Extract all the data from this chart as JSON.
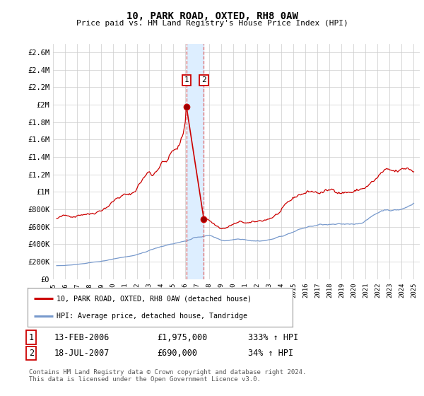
{
  "title": "10, PARK ROAD, OXTED, RH8 0AW",
  "subtitle": "Price paid vs. HM Land Registry's House Price Index (HPI)",
  "ylim": [
    0,
    2700000
  ],
  "yticks": [
    0,
    200000,
    400000,
    600000,
    800000,
    1000000,
    1200000,
    1400000,
    1600000,
    1800000,
    2000000,
    2200000,
    2400000,
    2600000
  ],
  "ytick_labels": [
    "£0",
    "£200K",
    "£400K",
    "£600K",
    "£800K",
    "£1M",
    "£1.2M",
    "£1.4M",
    "£1.6M",
    "£1.8M",
    "£2M",
    "£2.2M",
    "£2.4M",
    "£2.6M"
  ],
  "xlim_start": 1995.0,
  "xlim_end": 2025.5,
  "background_color": "#ffffff",
  "grid_color": "#cccccc",
  "red_line_color": "#cc0000",
  "blue_line_color": "#7799cc",
  "marker1_date": 2006.1,
  "marker1_value": 1975000,
  "marker2_date": 2007.54,
  "marker2_value": 690000,
  "vspan_color": "#ddeeff",
  "vline_color": "#dd6666",
  "legend_line1": "10, PARK ROAD, OXTED, RH8 0AW (detached house)",
  "legend_line2": "HPI: Average price, detached house, Tandridge",
  "table_row1": [
    "1",
    "13-FEB-2006",
    "£1,975,000",
    "333% ↑ HPI"
  ],
  "table_row2": [
    "2",
    "18-JUL-2007",
    "£690,000",
    "34% ↑ HPI"
  ],
  "footnote": "Contains HM Land Registry data © Crown copyright and database right 2024.\nThis data is licensed under the Open Government Licence v3.0.",
  "noise_seed": 42
}
